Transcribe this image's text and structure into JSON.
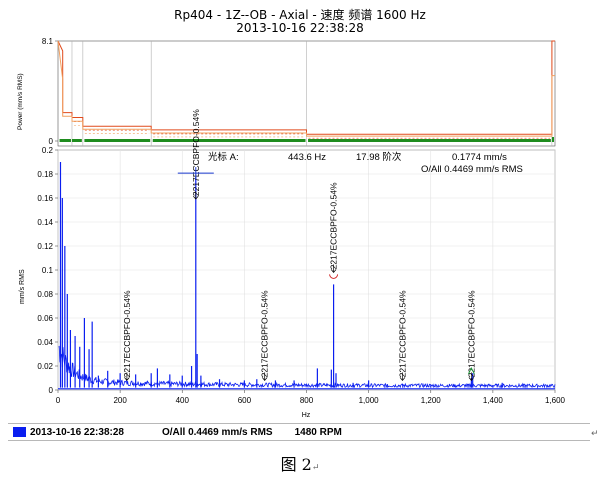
{
  "title": {
    "line1": "Rp404 - 1Z--OB - Axial - 速度 频谱 1600 Hz",
    "line2": "2013-10-16 22:38:28"
  },
  "status_bar": {
    "date": "2013-10-16 22:38:28",
    "overall": "O/All 0.4469 mm/s RMS",
    "rpm": "1480 RPM",
    "legend_color": "#0a1ef0"
  },
  "end_mark": "↵",
  "figure_caption": "图 2",
  "caption_mark": "↵",
  "chart_data": [
    {
      "type": "line",
      "name": "power-panel",
      "ylabel": "Power (mm/s RMS)",
      "yticks": [
        "8.1",
        "0"
      ],
      "ylim": [
        0,
        8.1
      ],
      "xlim": [
        0,
        1600
      ],
      "colors": {
        "upper": "#e04a1c",
        "middle": "#f0a060",
        "bar": "#1e8c1e"
      },
      "series": [
        {
          "values": [
            [
              0,
              8.1
            ],
            [
              15,
              7.3
            ],
            [
              15,
              2.3
            ],
            [
              45,
              2.3
            ],
            [
              45,
              1.9
            ],
            [
              80,
              1.9
            ],
            [
              80,
              1.2
            ],
            [
              300,
              1.2
            ],
            [
              300,
              0.9
            ],
            [
              800,
              0.9
            ],
            [
              800,
              0.55
            ],
            [
              1590,
              0.55
            ],
            [
              1590,
              8.1
            ],
            [
              1600,
              8.1
            ]
          ]
        },
        {
          "values": [
            [
              0,
              8.1
            ],
            [
              15,
              5.0
            ],
            [
              15,
              2.0
            ],
            [
              45,
              2.0
            ],
            [
              45,
              1.6
            ],
            [
              80,
              1.6
            ],
            [
              80,
              0.95
            ],
            [
              300,
              0.95
            ],
            [
              300,
              0.65
            ],
            [
              800,
              0.65
            ],
            [
              800,
              0.4
            ],
            [
              1590,
              0.4
            ],
            [
              1590,
              5.3
            ],
            [
              1600,
              5.3
            ]
          ]
        }
      ]
    },
    {
      "type": "line",
      "name": "spectrum",
      "ylabel": "mm/s RMS",
      "xlabel": "Hz",
      "xlim": [
        0,
        1600
      ],
      "ylim": [
        0,
        0.2
      ],
      "xticks": [
        "0",
        "200",
        "400",
        "600",
        "800",
        "1,000",
        "1,200",
        "1,400",
        "1,600"
      ],
      "yticks": [
        "0",
        "0.02",
        "0.04",
        "0.06",
        "0.08",
        "0.1",
        "0.12",
        "0.14",
        "0.16",
        "0.18",
        "0.2"
      ],
      "color": "#0a1ef0",
      "cursor": {
        "label": "光标 A:",
        "freq": "443.6 Hz",
        "order": "17.98 阶次",
        "amp": "0.1774 mm/s",
        "overall": "O/All 0.4469 mm/s RMS",
        "x": 443.6,
        "y": 0.1774
      },
      "annotations": [
        {
          "label": "2217ECCBPFO-0.54%",
          "x": 221.8
        },
        {
          "label": "2217ECCBPFO-0.54%",
          "x": 443.6
        },
        {
          "label": "2217ECCBPFO-0.54%",
          "x": 665.4
        },
        {
          "label": "2217ECCBPFO-0.54%",
          "x": 887.2
        },
        {
          "label": "2217ECCBPFO-0.54%",
          "x": 1109.0
        },
        {
          "label": "2217ECCBPFO-0.54%",
          "x": 1330.8
        }
      ],
      "peaks": [
        [
          8,
          0.19
        ],
        [
          14,
          0.16
        ],
        [
          22,
          0.12
        ],
        [
          30,
          0.08
        ],
        [
          40,
          0.05
        ],
        [
          55,
          0.045
        ],
        [
          70,
          0.036
        ],
        [
          85,
          0.06
        ],
        [
          100,
          0.034
        ],
        [
          110,
          0.057
        ],
        [
          130,
          0.012
        ],
        [
          160,
          0.016
        ],
        [
          200,
          0.014
        ],
        [
          250,
          0.013
        ],
        [
          300,
          0.014
        ],
        [
          320,
          0.018
        ],
        [
          360,
          0.013
        ],
        [
          400,
          0.012
        ],
        [
          430,
          0.02
        ],
        [
          443.6,
          0.1774
        ],
        [
          448,
          0.03
        ],
        [
          460,
          0.012
        ],
        [
          520,
          0.009
        ],
        [
          600,
          0.008
        ],
        [
          640,
          0.009
        ],
        [
          700,
          0.008
        ],
        [
          760,
          0.008
        ],
        [
          835,
          0.018
        ],
        [
          880,
          0.017
        ],
        [
          887.2,
          0.088
        ],
        [
          895,
          0.014
        ],
        [
          950,
          0.006
        ],
        [
          1000,
          0.008
        ],
        [
          1060,
          0.005
        ],
        [
          1110,
          0.005
        ],
        [
          1200,
          0.004
        ],
        [
          1320,
          0.005
        ],
        [
          1330.8,
          0.01
        ],
        [
          1335,
          0.014
        ],
        [
          1400,
          0.004
        ],
        [
          1430,
          0.006
        ],
        [
          1500,
          0.003
        ],
        [
          1560,
          0.002
        ]
      ]
    }
  ]
}
